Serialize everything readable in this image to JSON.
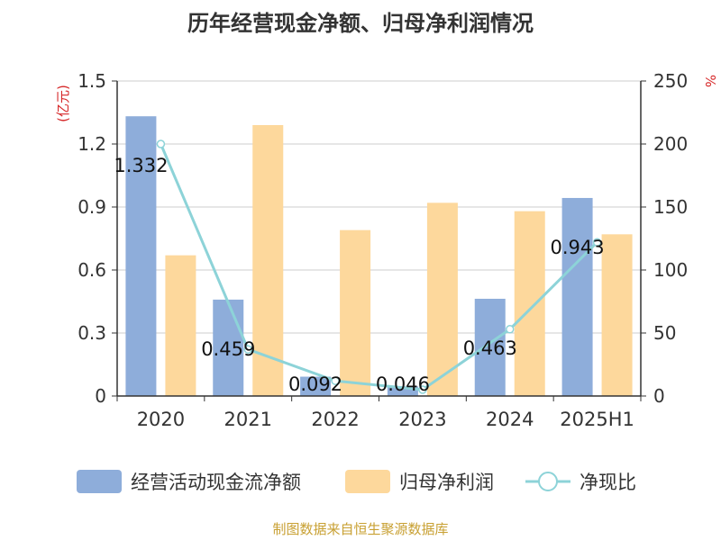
{
  "chart_data": {
    "type": "bar",
    "title": "历年经营现金净额、归母净利润情况",
    "categories": [
      "2020",
      "2021",
      "2022",
      "2023",
      "2024",
      "2025H1"
    ],
    "y_left_label": "(亿元)",
    "y_left_ticks": [
      "0",
      "0.3",
      "0.6",
      "0.9",
      "1.2",
      "1.5"
    ],
    "y_left_range": [
      0,
      1.5
    ],
    "y_right_label": "%",
    "y_right_ticks": [
      "0",
      "50",
      "100",
      "150",
      "200",
      "250"
    ],
    "y_right_range": [
      0,
      250
    ],
    "grid": true,
    "legend_position": "bottom",
    "series": [
      {
        "name": "经营活动现金流净额",
        "kind": "bar",
        "axis": "left",
        "color": "#8eadda",
        "values": [
          1.332,
          0.459,
          0.092,
          0.046,
          0.463,
          0.943
        ],
        "labels": [
          "1.332",
          "0.459",
          "0.092",
          "0.046",
          "0.463",
          "0.943"
        ]
      },
      {
        "name": "归母净利润",
        "kind": "bar",
        "axis": "left",
        "color": "#fdd89c",
        "values": [
          0.67,
          1.29,
          0.79,
          0.92,
          0.88,
          0.77
        ]
      },
      {
        "name": "净现比",
        "kind": "line",
        "axis": "right",
        "color": "#8dd3d8",
        "values": [
          200,
          37,
          12,
          5,
          53,
          122
        ]
      }
    ]
  },
  "source": "制图数据来自恒生聚源数据库"
}
